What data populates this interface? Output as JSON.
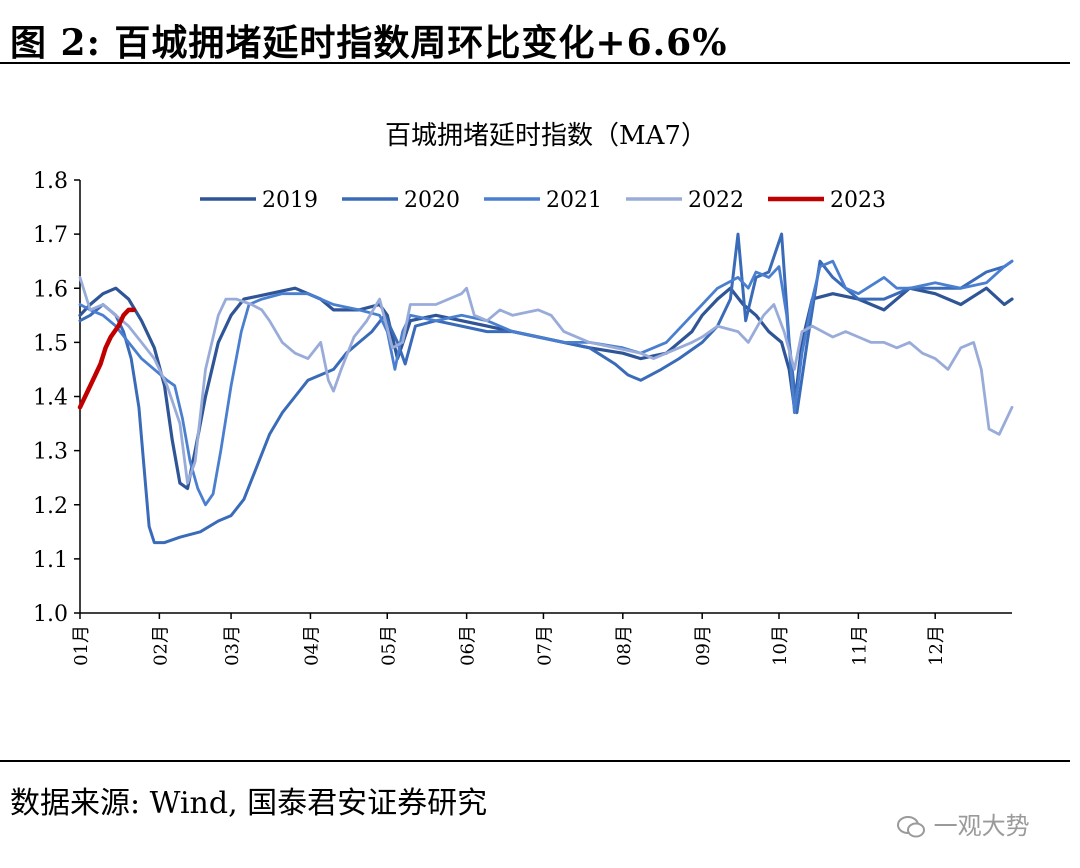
{
  "figure": {
    "title": "图 2:  百城拥堵延时指数周环比变化+6.6%",
    "source": "数据来源:  Wind,  国泰君安证券研究",
    "watermark": "一观大势"
  },
  "colors": {
    "s2019": "#2f5597",
    "s2020": "#3a6bb8",
    "s2021": "#4a7fd0",
    "s2022": "#99acd9",
    "s2023": "#c00000"
  },
  "chart_data": {
    "type": "line",
    "title": "百城拥堵延时指数（MA7）",
    "xlabel": "",
    "ylabel": "",
    "ylim": [
      1.0,
      1.8
    ],
    "yticks": [
      "1.0",
      "1.1",
      "1.2",
      "1.3",
      "1.4",
      "1.5",
      "1.6",
      "1.7",
      "1.8"
    ],
    "xlim": [
      1,
      365
    ],
    "xticks": [
      {
        "label": "01月",
        "day": 1
      },
      {
        "label": "02月",
        "day": 32
      },
      {
        "label": "03月",
        "day": 60
      },
      {
        "label": "04月",
        "day": 91
      },
      {
        "label": "05月",
        "day": 121
      },
      {
        "label": "06月",
        "day": 152
      },
      {
        "label": "07月",
        "day": 182
      },
      {
        "label": "08月",
        "day": 213
      },
      {
        "label": "09月",
        "day": 244
      },
      {
        "label": "10月",
        "day": 274
      },
      {
        "label": "11月",
        "day": 305
      },
      {
        "label": "12月",
        "day": 335
      }
    ],
    "legend_position": "top",
    "series": [
      {
        "name": "2019",
        "color_key": "s2019",
        "width": 3.2,
        "points": [
          [
            1,
            1.55
          ],
          [
            5,
            1.57
          ],
          [
            10,
            1.59
          ],
          [
            15,
            1.6
          ],
          [
            20,
            1.58
          ],
          [
            25,
            1.54
          ],
          [
            30,
            1.49
          ],
          [
            34,
            1.42
          ],
          [
            37,
            1.32
          ],
          [
            40,
            1.24
          ],
          [
            43,
            1.23
          ],
          [
            46,
            1.3
          ],
          [
            50,
            1.4
          ],
          [
            55,
            1.5
          ],
          [
            60,
            1.55
          ],
          [
            65,
            1.58
          ],
          [
            75,
            1.59
          ],
          [
            85,
            1.6
          ],
          [
            95,
            1.58
          ],
          [
            100,
            1.56
          ],
          [
            110,
            1.56
          ],
          [
            118,
            1.57
          ],
          [
            121,
            1.55
          ],
          [
            125,
            1.47
          ],
          [
            130,
            1.54
          ],
          [
            140,
            1.55
          ],
          [
            150,
            1.54
          ],
          [
            160,
            1.53
          ],
          [
            170,
            1.52
          ],
          [
            180,
            1.51
          ],
          [
            190,
            1.5
          ],
          [
            200,
            1.49
          ],
          [
            213,
            1.48
          ],
          [
            220,
            1.47
          ],
          [
            230,
            1.48
          ],
          [
            240,
            1.52
          ],
          [
            244,
            1.55
          ],
          [
            250,
            1.58
          ],
          [
            255,
            1.6
          ],
          [
            260,
            1.57
          ],
          [
            265,
            1.55
          ],
          [
            270,
            1.52
          ],
          [
            275,
            1.5
          ],
          [
            278,
            1.45
          ],
          [
            280,
            1.38
          ],
          [
            283,
            1.5
          ],
          [
            287,
            1.58
          ],
          [
            295,
            1.59
          ],
          [
            305,
            1.58
          ],
          [
            315,
            1.56
          ],
          [
            325,
            1.6
          ],
          [
            335,
            1.59
          ],
          [
            345,
            1.57
          ],
          [
            355,
            1.6
          ],
          [
            362,
            1.57
          ],
          [
            365,
            1.58
          ]
        ]
      },
      {
        "name": "2020",
        "color_key": "s2020",
        "width": 3.0,
        "points": [
          [
            1,
            1.54
          ],
          [
            5,
            1.55
          ],
          [
            10,
            1.57
          ],
          [
            15,
            1.55
          ],
          [
            18,
            1.52
          ],
          [
            21,
            1.47
          ],
          [
            24,
            1.38
          ],
          [
            26,
            1.27
          ],
          [
            28,
            1.16
          ],
          [
            30,
            1.13
          ],
          [
            34,
            1.13
          ],
          [
            40,
            1.14
          ],
          [
            48,
            1.15
          ],
          [
            55,
            1.17
          ],
          [
            60,
            1.18
          ],
          [
            65,
            1.21
          ],
          [
            70,
            1.27
          ],
          [
            75,
            1.33
          ],
          [
            80,
            1.37
          ],
          [
            85,
            1.4
          ],
          [
            90,
            1.43
          ],
          [
            95,
            1.44
          ],
          [
            100,
            1.45
          ],
          [
            105,
            1.48
          ],
          [
            110,
            1.5
          ],
          [
            115,
            1.52
          ],
          [
            120,
            1.55
          ],
          [
            125,
            1.5
          ],
          [
            128,
            1.46
          ],
          [
            132,
            1.53
          ],
          [
            140,
            1.54
          ],
          [
            150,
            1.53
          ],
          [
            160,
            1.52
          ],
          [
            170,
            1.52
          ],
          [
            180,
            1.51
          ],
          [
            190,
            1.5
          ],
          [
            200,
            1.49
          ],
          [
            210,
            1.46
          ],
          [
            215,
            1.44
          ],
          [
            220,
            1.43
          ],
          [
            228,
            1.45
          ],
          [
            235,
            1.47
          ],
          [
            244,
            1.5
          ],
          [
            250,
            1.53
          ],
          [
            255,
            1.58
          ],
          [
            258,
            1.7
          ],
          [
            261,
            1.54
          ],
          [
            265,
            1.62
          ],
          [
            270,
            1.63
          ],
          [
            275,
            1.7
          ],
          [
            278,
            1.5
          ],
          [
            281,
            1.37
          ],
          [
            285,
            1.5
          ],
          [
            290,
            1.65
          ],
          [
            295,
            1.62
          ],
          [
            305,
            1.58
          ],
          [
            315,
            1.58
          ],
          [
            325,
            1.6
          ],
          [
            335,
            1.6
          ],
          [
            345,
            1.6
          ],
          [
            355,
            1.63
          ],
          [
            362,
            1.64
          ],
          [
            365,
            1.65
          ]
        ]
      },
      {
        "name": "2021",
        "color_key": "s2021",
        "width": 2.8,
        "points": [
          [
            1,
            1.57
          ],
          [
            5,
            1.56
          ],
          [
            10,
            1.55
          ],
          [
            15,
            1.53
          ],
          [
            20,
            1.5
          ],
          [
            25,
            1.47
          ],
          [
            30,
            1.45
          ],
          [
            35,
            1.43
          ],
          [
            38,
            1.42
          ],
          [
            41,
            1.36
          ],
          [
            44,
            1.28
          ],
          [
            47,
            1.23
          ],
          [
            50,
            1.2
          ],
          [
            53,
            1.22
          ],
          [
            56,
            1.3
          ],
          [
            60,
            1.42
          ],
          [
            64,
            1.52
          ],
          [
            67,
            1.57
          ],
          [
            72,
            1.58
          ],
          [
            80,
            1.59
          ],
          [
            90,
            1.59
          ],
          [
            95,
            1.58
          ],
          [
            100,
            1.57
          ],
          [
            110,
            1.56
          ],
          [
            118,
            1.55
          ],
          [
            121,
            1.52
          ],
          [
            124,
            1.45
          ],
          [
            127,
            1.52
          ],
          [
            130,
            1.55
          ],
          [
            140,
            1.54
          ],
          [
            150,
            1.55
          ],
          [
            160,
            1.54
          ],
          [
            170,
            1.52
          ],
          [
            180,
            1.51
          ],
          [
            190,
            1.5
          ],
          [
            200,
            1.5
          ],
          [
            213,
            1.49
          ],
          [
            220,
            1.48
          ],
          [
            230,
            1.5
          ],
          [
            240,
            1.55
          ],
          [
            244,
            1.57
          ],
          [
            250,
            1.6
          ],
          [
            258,
            1.62
          ],
          [
            262,
            1.6
          ],
          [
            265,
            1.63
          ],
          [
            270,
            1.62
          ],
          [
            274,
            1.64
          ],
          [
            277,
            1.55
          ],
          [
            280,
            1.37
          ],
          [
            283,
            1.48
          ],
          [
            287,
            1.58
          ],
          [
            290,
            1.64
          ],
          [
            295,
            1.65
          ],
          [
            300,
            1.6
          ],
          [
            305,
            1.59
          ],
          [
            315,
            1.62
          ],
          [
            320,
            1.6
          ],
          [
            325,
            1.6
          ],
          [
            335,
            1.61
          ],
          [
            345,
            1.6
          ],
          [
            355,
            1.61
          ],
          [
            362,
            1.64
          ],
          [
            365,
            1.65
          ]
        ]
      },
      {
        "name": "2022",
        "color_key": "s2022",
        "width": 2.8,
        "points": [
          [
            1,
            1.62
          ],
          [
            5,
            1.56
          ],
          [
            10,
            1.57
          ],
          [
            15,
            1.55
          ],
          [
            20,
            1.53
          ],
          [
            25,
            1.5
          ],
          [
            30,
            1.47
          ],
          [
            35,
            1.42
          ],
          [
            40,
            1.35
          ],
          [
            43,
            1.24
          ],
          [
            46,
            1.28
          ],
          [
            50,
            1.45
          ],
          [
            55,
            1.55
          ],
          [
            58,
            1.58
          ],
          [
            62,
            1.58
          ],
          [
            68,
            1.57
          ],
          [
            72,
            1.56
          ],
          [
            75,
            1.54
          ],
          [
            80,
            1.5
          ],
          [
            85,
            1.48
          ],
          [
            90,
            1.47
          ],
          [
            95,
            1.5
          ],
          [
            98,
            1.43
          ],
          [
            100,
            1.41
          ],
          [
            103,
            1.45
          ],
          [
            108,
            1.51
          ],
          [
            113,
            1.54
          ],
          [
            118,
            1.58
          ],
          [
            123,
            1.49
          ],
          [
            127,
            1.5
          ],
          [
            130,
            1.57
          ],
          [
            140,
            1.57
          ],
          [
            150,
            1.59
          ],
          [
            152,
            1.6
          ],
          [
            155,
            1.55
          ],
          [
            160,
            1.54
          ],
          [
            165,
            1.56
          ],
          [
            170,
            1.55
          ],
          [
            180,
            1.56
          ],
          [
            185,
            1.55
          ],
          [
            190,
            1.52
          ],
          [
            200,
            1.5
          ],
          [
            210,
            1.49
          ],
          [
            220,
            1.48
          ],
          [
            225,
            1.47
          ],
          [
            230,
            1.48
          ],
          [
            240,
            1.5
          ],
          [
            244,
            1.51
          ],
          [
            250,
            1.53
          ],
          [
            258,
            1.52
          ],
          [
            262,
            1.5
          ],
          [
            268,
            1.55
          ],
          [
            272,
            1.57
          ],
          [
            276,
            1.52
          ],
          [
            280,
            1.45
          ],
          [
            283,
            1.52
          ],
          [
            287,
            1.53
          ],
          [
            295,
            1.51
          ],
          [
            300,
            1.52
          ],
          [
            305,
            1.51
          ],
          [
            310,
            1.5
          ],
          [
            315,
            1.5
          ],
          [
            320,
            1.49
          ],
          [
            325,
            1.5
          ],
          [
            330,
            1.48
          ],
          [
            335,
            1.47
          ],
          [
            340,
            1.45
          ],
          [
            345,
            1.49
          ],
          [
            350,
            1.5
          ],
          [
            353,
            1.45
          ],
          [
            356,
            1.34
          ],
          [
            360,
            1.33
          ],
          [
            362,
            1.35
          ],
          [
            365,
            1.38
          ]
        ]
      },
      {
        "name": "2023",
        "color_key": "s2023",
        "width": 4.5,
        "points": [
          [
            1,
            1.38
          ],
          [
            4,
            1.41
          ],
          [
            7,
            1.44
          ],
          [
            9,
            1.46
          ],
          [
            11,
            1.49
          ],
          [
            13,
            1.51
          ],
          [
            16,
            1.53
          ],
          [
            18,
            1.55
          ],
          [
            20,
            1.56
          ],
          [
            22,
            1.56
          ]
        ]
      }
    ]
  }
}
